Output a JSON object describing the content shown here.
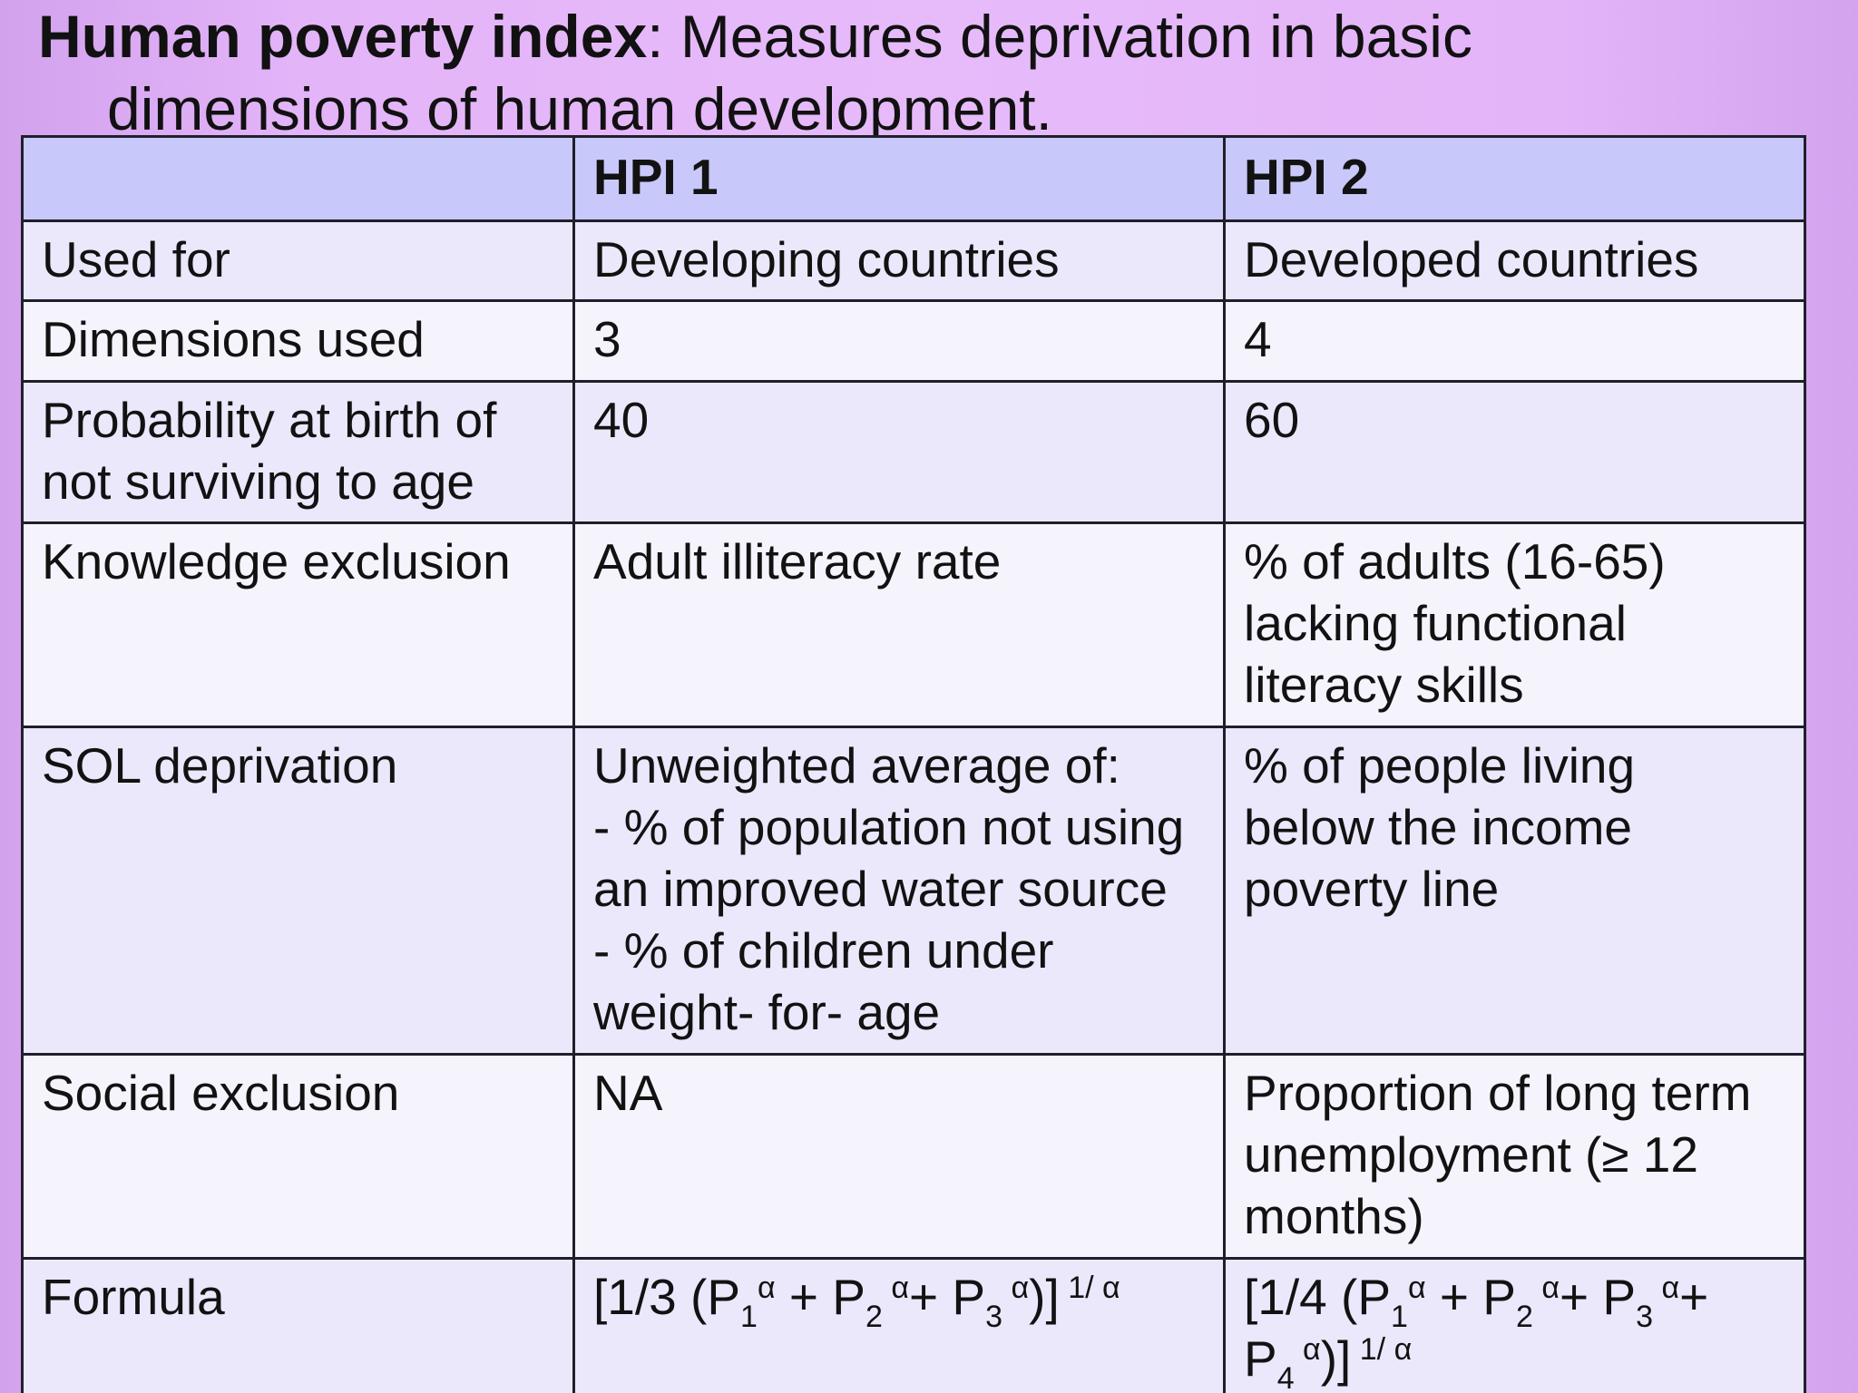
{
  "slide": {
    "title_term": "Human poverty index",
    "title_rest": ": Measures deprivation in basic",
    "title_line2": "dimensions of human development."
  },
  "table": {
    "headers": [
      "",
      "HPI 1",
      "HPI 2"
    ],
    "rows": [
      {
        "label": "Used for",
        "hpi1": "Developing countries",
        "hpi2": "Developed countries"
      },
      {
        "label": "Dimensions used",
        "hpi1": "3",
        "hpi2": "4"
      },
      {
        "label": "Probability at birth of\nnot surviving to age",
        "hpi1": "40",
        "hpi2": "60"
      },
      {
        "label": "Knowledge exclusion",
        "hpi1": "Adult illiteracy rate",
        "hpi2": "% of adults (16-65)\nlacking functional\nliteracy skills"
      },
      {
        "label": "SOL deprivation",
        "hpi1": "Unweighted average of:\n- % of population not using\nan improved water source\n- % of children under\nweight- for- age",
        "hpi2": "% of people living\nbelow the income\npoverty line"
      },
      {
        "label": "Social exclusion",
        "hpi1": "NA",
        "hpi2": "Proportion of long term\nunemployment (≥ 12\nmonths)"
      },
      {
        "label": "Formula"
      }
    ],
    "formula1": {
      "open": "[1/3 (P",
      "s1": "1",
      "a1": "α",
      "plus1": " + P",
      "s2": "2",
      "a2": " α",
      "plus2": "+ P",
      "s3": "3",
      "a3": " α",
      "close": ")]",
      "exp": " 1/ α"
    },
    "formula2": {
      "open": "[1/4 (P",
      "s1": "1",
      "a1": "α",
      "plus1": " + P",
      "s2": "2",
      "a2": " α",
      "plus2": "+ P",
      "s3": "3",
      "a3": " α",
      "plus3": "+",
      "line2": "P",
      "s4": "4",
      "a4": " α",
      "close": ")]",
      "exp": " 1/ α"
    }
  }
}
